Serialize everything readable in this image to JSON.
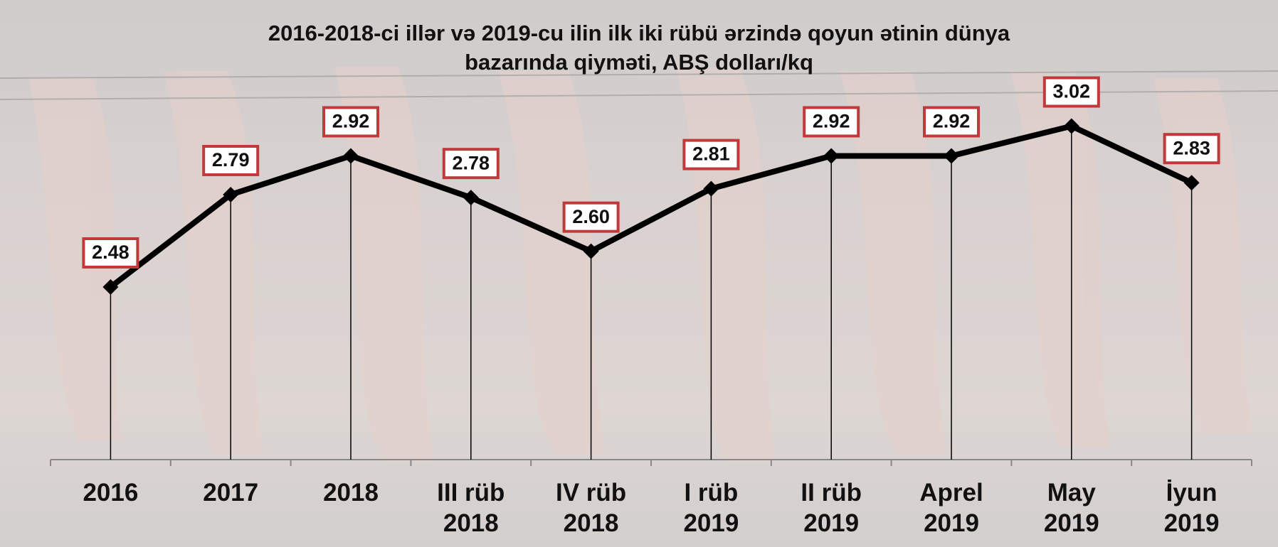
{
  "chart_data": {
    "type": "line",
    "title": "2016-2018-ci illər və 2019-cu ilin ilk iki rübü ərzində qoyun ətinin dünya\nbazarında qiyməti, ABŞ dolları/kq",
    "categories": [
      "2016",
      "2017",
      "2018",
      "III rüb\n2018",
      "IV rüb\n2018",
      "I rüb\n2019",
      "II rüb\n2019",
      "Aprel\n2019",
      "May\n2019",
      "İyun\n2019"
    ],
    "values": [
      2.48,
      2.79,
      2.92,
      2.78,
      2.6,
      2.81,
      2.92,
      2.92,
      3.02,
      2.83
    ],
    "value_labels": [
      "2.48",
      "2.79",
      "2.92",
      "2.78",
      "2.60",
      "2.81",
      "2.92",
      "2.92",
      "3.02",
      "2.83"
    ],
    "color": "#000000"
  }
}
